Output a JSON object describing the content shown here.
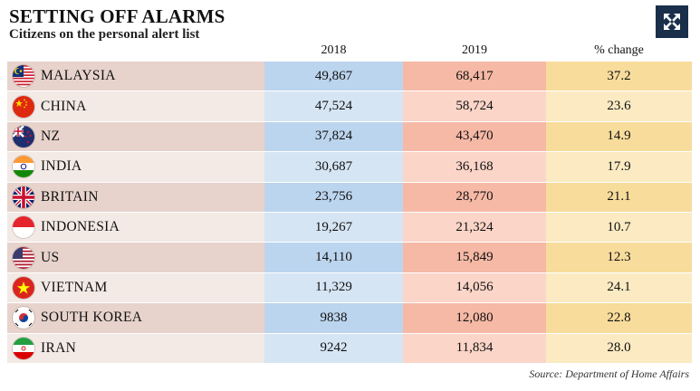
{
  "header": {
    "title": "SETTING OFF ALARMS",
    "subtitle": "Citizens on the personal alert list"
  },
  "source": "Source: Department of Home Affairs",
  "icons": {
    "expand": "expand-arrows-icon"
  },
  "chart_data": {
    "type": "table",
    "title": "SETTING OFF ALARMS",
    "subtitle": "Citizens on the personal alert list",
    "columns": [
      "2018",
      "2019",
      "% change"
    ],
    "rows": [
      {
        "country": "MALAYSIA",
        "y2018": "49,867",
        "y2019": "68,417",
        "change": "37.2"
      },
      {
        "country": "CHINA",
        "y2018": "47,524",
        "y2019": "58,724",
        "change": "23.6"
      },
      {
        "country": "NZ",
        "y2018": "37,824",
        "y2019": "43,470",
        "change": "14.9"
      },
      {
        "country": "INDIA",
        "y2018": "30,687",
        "y2019": "36,168",
        "change": "17.9"
      },
      {
        "country": "BRITAIN",
        "y2018": "23,756",
        "y2019": "28,770",
        "change": "21.1"
      },
      {
        "country": "INDONESIA",
        "y2018": "19,267",
        "y2019": "21,324",
        "change": "10.7"
      },
      {
        "country": "US",
        "y2018": "14,110",
        "y2019": "15,849",
        "change": "12.3"
      },
      {
        "country": "VIETNAM",
        "y2018": "11,329",
        "y2019": "14,056",
        "change": "24.1"
      },
      {
        "country": "SOUTH KOREA",
        "y2018": "9838",
        "y2019": "12,080",
        "change": "22.8"
      },
      {
        "country": "IRAN",
        "y2018": "9242",
        "y2019": "11,834",
        "change": "28.0"
      }
    ]
  },
  "colors": {
    "country_even": "#e7d3cc",
    "country_odd": "#f3e9e5",
    "y2018_even": "#bcd5ee",
    "y2018_odd": "#d6e5f4",
    "y2019_even": "#f6b9a6",
    "y2019_odd": "#fad5c8",
    "change_even": "#f8dc9c",
    "change_odd": "#fbeac2"
  }
}
